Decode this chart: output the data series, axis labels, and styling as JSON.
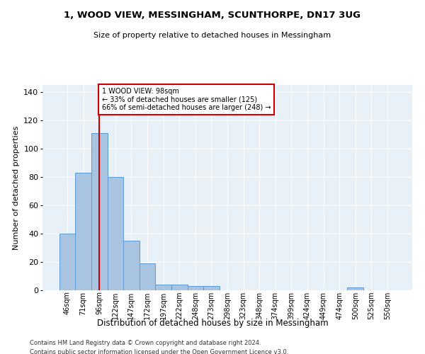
{
  "title_line1": "1, WOOD VIEW, MESSINGHAM, SCUNTHORPE, DN17 3UG",
  "title_line2": "Size of property relative to detached houses in Messingham",
  "xlabel": "Distribution of detached houses by size in Messingham",
  "ylabel": "Number of detached properties",
  "bin_labels": [
    "46sqm",
    "71sqm",
    "96sqm",
    "122sqm",
    "147sqm",
    "172sqm",
    "197sqm",
    "222sqm",
    "248sqm",
    "273sqm",
    "298sqm",
    "323sqm",
    "348sqm",
    "374sqm",
    "399sqm",
    "424sqm",
    "449sqm",
    "474sqm",
    "500sqm",
    "525sqm",
    "550sqm"
  ],
  "bar_values": [
    40,
    83,
    111,
    80,
    35,
    19,
    4,
    4,
    3,
    3,
    0,
    0,
    0,
    0,
    0,
    0,
    0,
    0,
    2,
    0,
    0
  ],
  "bar_color": "#a8c4e0",
  "bar_edge_color": "#5b9bd5",
  "vline_x": 2,
  "vline_color": "#cc0000",
  "annotation_text": "1 WOOD VIEW: 98sqm\n← 33% of detached houses are smaller (125)\n66% of semi-detached houses are larger (248) →",
  "annotation_box_color": "#ffffff",
  "annotation_edge_color": "#cc0000",
  "ylim": [
    0,
    145
  ],
  "yticks": [
    0,
    20,
    40,
    60,
    80,
    100,
    120,
    140
  ],
  "background_color": "#e8f0f8",
  "grid_color": "#ffffff",
  "footer_line1": "Contains HM Land Registry data © Crown copyright and database right 2024.",
  "footer_line2": "Contains public sector information licensed under the Open Government Licence v3.0."
}
